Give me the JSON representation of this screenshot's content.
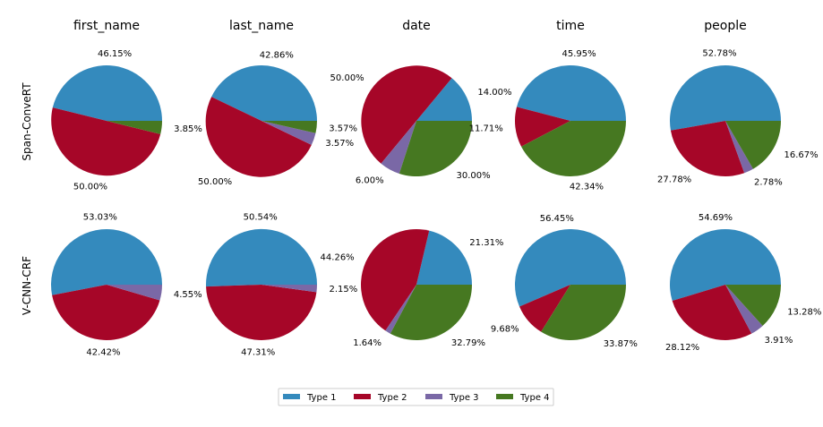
{
  "chart_data": {
    "type": "pie",
    "columns": [
      "first_name",
      "last_name",
      "date",
      "time",
      "people"
    ],
    "rows": [
      "Span-ConveRT",
      "V-CNN-CRF"
    ],
    "legend": {
      "placement": "bottom-center",
      "entries": [
        "Type 1",
        "Type 2",
        "Type 3",
        "Type 4"
      ]
    },
    "colors": [
      "#348abd",
      "#a60628",
      "#7a68a6",
      "#467821"
    ],
    "panels": [
      {
        "row": "Span-ConveRT",
        "column": "first_name",
        "values": [
          46.15,
          50.0,
          0,
          3.85
        ],
        "labels": [
          "46.15%",
          "50.00%",
          "",
          "3.85%"
        ]
      },
      {
        "row": "Span-ConveRT",
        "column": "last_name",
        "values": [
          42.86,
          50.0,
          3.57,
          3.57
        ],
        "labels": [
          "42.86%",
          "50.00%",
          "3.57%",
          "3.57%"
        ]
      },
      {
        "row": "Span-ConveRT",
        "column": "date",
        "values": [
          14.0,
          50.0,
          6.0,
          30.0
        ],
        "labels": [
          "14.00%",
          "50.00%",
          "6.00%",
          "30.00%"
        ]
      },
      {
        "row": "Span-ConveRT",
        "column": "time",
        "values": [
          45.95,
          11.71,
          0,
          42.34
        ],
        "labels": [
          "45.95%",
          "11.71%",
          "",
          "42.34%"
        ]
      },
      {
        "row": "Span-ConveRT",
        "column": "people",
        "values": [
          52.78,
          27.78,
          2.78,
          16.67
        ],
        "labels": [
          "52.78%",
          "27.78%",
          "2.78%",
          "16.67%"
        ]
      },
      {
        "row": "V-CNN-CRF",
        "column": "first_name",
        "values": [
          53.03,
          42.42,
          4.55,
          0
        ],
        "labels": [
          "53.03%",
          "42.42%",
          "4.55%",
          ""
        ]
      },
      {
        "row": "V-CNN-CRF",
        "column": "last_name",
        "values": [
          50.54,
          47.31,
          2.15,
          0
        ],
        "labels": [
          "50.54%",
          "47.31%",
          "2.15%",
          ""
        ]
      },
      {
        "row": "V-CNN-CRF",
        "column": "date",
        "values": [
          21.31,
          44.26,
          1.64,
          32.79
        ],
        "labels": [
          "21.31%",
          "44.26%",
          "1.64%",
          "32.79%"
        ]
      },
      {
        "row": "V-CNN-CRF",
        "column": "time",
        "values": [
          56.45,
          9.68,
          0,
          33.87
        ],
        "labels": [
          "56.45%",
          "9.68%",
          "",
          "33.87%"
        ]
      },
      {
        "row": "V-CNN-CRF",
        "column": "people",
        "values": [
          54.69,
          28.12,
          3.91,
          13.28
        ],
        "labels": [
          "54.69%",
          "28.12%",
          "3.91%",
          "13.28%"
        ]
      }
    ]
  }
}
